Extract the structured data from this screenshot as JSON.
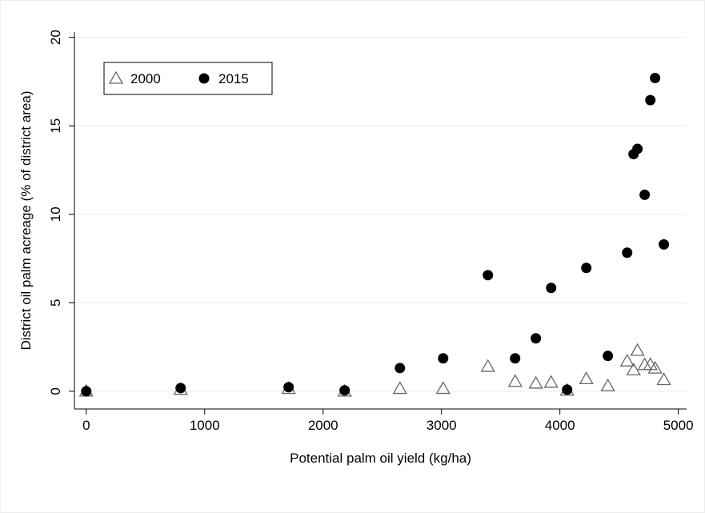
{
  "chart_data": {
    "type": "scatter",
    "x_label": "Potential palm oil yield (kg/ha)",
    "y_label": "District oil palm acreage (% of district area)",
    "legend_position": "upper left",
    "grid": true,
    "x": [
      0,
      797,
      1709,
      2182,
      2649,
      3014,
      3392,
      3622,
      3797,
      3926,
      4061,
      4223,
      4405,
      4568,
      4622,
      4655,
      4716,
      4764,
      4804,
      4878
    ],
    "series": [
      {
        "name": "2000",
        "marker": "triangle",
        "color": "#666666",
        "values": [
          0.0,
          0.1,
          0.15,
          0.0,
          0.15,
          0.15,
          1.4,
          0.55,
          0.45,
          0.5,
          0.05,
          0.7,
          0.3,
          1.7,
          1.2,
          2.3,
          1.5,
          1.5,
          1.3,
          0.65
        ]
      },
      {
        "name": "2015",
        "marker": "circle",
        "color": "#000000",
        "values": [
          0.0,
          0.18,
          0.23,
          0.05,
          1.31,
          1.86,
          6.56,
          1.86,
          2.99,
          5.84,
          0.09,
          6.97,
          2.0,
          7.83,
          13.4,
          13.7,
          11.1,
          16.45,
          17.7,
          8.3
        ]
      }
    ],
    "xlim": [
      -100,
      5070
    ],
    "xticks": [
      0,
      1000,
      2000,
      3000,
      4000,
      5000
    ],
    "ylim": [
      -1,
      20.3
    ],
    "yticks": [
      0,
      5,
      10,
      15,
      20
    ]
  }
}
